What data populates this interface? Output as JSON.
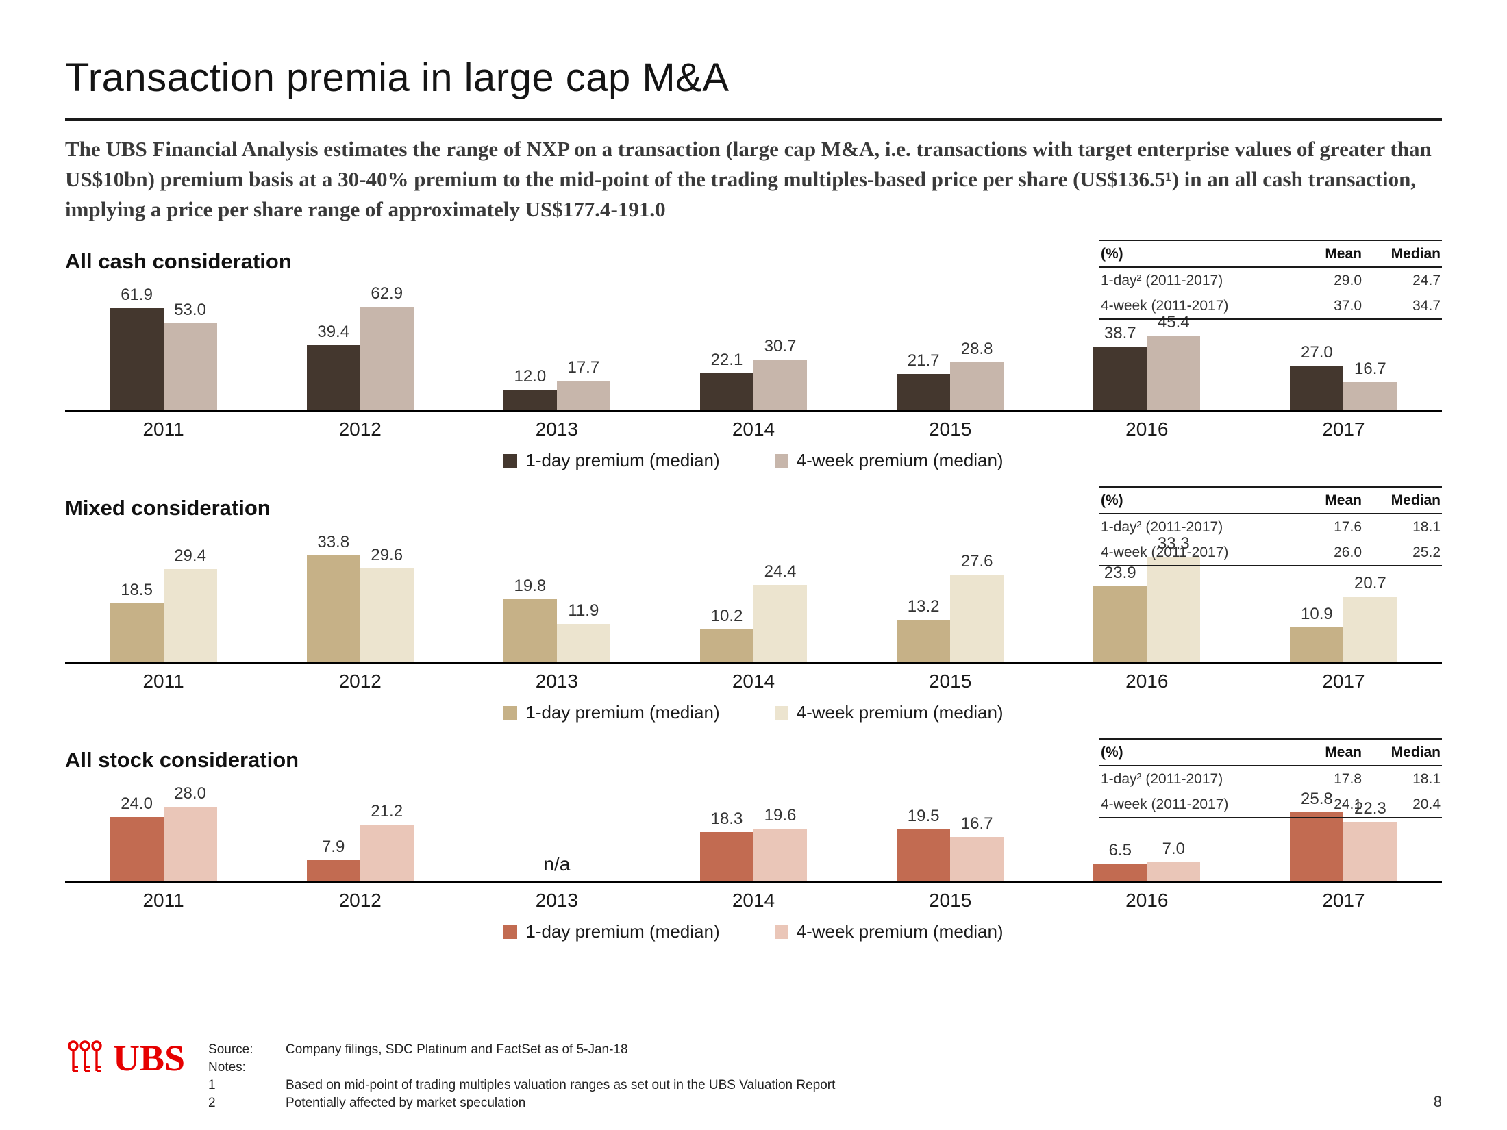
{
  "slide": {
    "title": "Transaction premia in large cap M&A",
    "intro": "The UBS Financial Analysis estimates the range of NXP on a transaction (large cap M&A, i.e. transactions with target enterprise values of greater than US$10bn) premium basis at a 30-40% premium to the mid-point of the trading multiples-based price per share (US$136.5¹) in an all cash transaction, implying a price per share range of approximately US$177.4-191.0",
    "page_number": "8"
  },
  "colors": {
    "ubs_red": "#e60000",
    "axis": "#000000"
  },
  "chart_data": [
    {
      "type": "bar",
      "title": "All cash consideration",
      "categories": [
        "2011",
        "2012",
        "2013",
        "2014",
        "2015",
        "2016",
        "2017"
      ],
      "series": [
        {
          "name": "1-day premium (median)",
          "color": "#44372e",
          "values": [
            61.9,
            39.4,
            12.0,
            22.1,
            21.7,
            38.7,
            27.0
          ]
        },
        {
          "name": "4-week premium (median)",
          "color": "#c7b6ab",
          "values": [
            53.0,
            62.9,
            17.7,
            30.7,
            28.8,
            45.4,
            16.7
          ]
        }
      ],
      "ylim": [
        0,
        63
      ],
      "legend_position": "bottom-center",
      "stats": {
        "header": [
          "(%)",
          "Mean",
          "Median"
        ],
        "rows": [
          {
            "label": "1-day² (2011-2017)",
            "mean": "29.0",
            "median": "24.7"
          },
          {
            "label": "4-week (2011-2017)",
            "mean": "37.0",
            "median": "34.7"
          }
        ]
      }
    },
    {
      "type": "bar",
      "title": "Mixed consideration",
      "categories": [
        "2011",
        "2012",
        "2013",
        "2014",
        "2015",
        "2016",
        "2017"
      ],
      "series": [
        {
          "name": "1-day premium (median)",
          "color": "#c6b187",
          "values": [
            18.5,
            33.8,
            19.8,
            10.2,
            13.2,
            23.9,
            10.9
          ]
        },
        {
          "name": "4-week premium (median)",
          "color": "#ece4cf",
          "values": [
            29.4,
            29.6,
            11.9,
            24.4,
            27.6,
            33.3,
            20.7
          ]
        }
      ],
      "ylim": [
        0,
        34
      ],
      "legend_position": "bottom-center",
      "stats": {
        "header": [
          "(%)",
          "Mean",
          "Median"
        ],
        "rows": [
          {
            "label": "1-day² (2011-2017)",
            "mean": "17.6",
            "median": "18.1"
          },
          {
            "label": "4-week (2011-2017)",
            "mean": "26.0",
            "median": "25.2"
          }
        ]
      }
    },
    {
      "type": "bar",
      "title": "All stock consideration",
      "categories": [
        "2011",
        "2012",
        "2013",
        "2014",
        "2015",
        "2016",
        "2017"
      ],
      "na_text": "n/a",
      "series": [
        {
          "name": "1-day premium (median)",
          "color": "#c26b51",
          "values": [
            24.0,
            7.9,
            null,
            18.3,
            19.5,
            6.5,
            25.8
          ]
        },
        {
          "name": "4-week premium (median)",
          "color": "#eac6b8",
          "values": [
            28.0,
            21.2,
            null,
            19.6,
            16.7,
            7.0,
            22.3
          ]
        }
      ],
      "ylim": [
        0,
        28
      ],
      "legend_position": "bottom-center",
      "stats": {
        "header": [
          "(%)",
          "Mean",
          "Median"
        ],
        "rows": [
          {
            "label": "1-day² (2011-2017)",
            "mean": "17.8",
            "median": "18.1"
          },
          {
            "label": "4-week (2011-2017)",
            "mean": "24.1",
            "median": "20.4"
          }
        ]
      }
    }
  ],
  "footer": {
    "logo_text": "UBS",
    "source_label": "Source:",
    "source_value": "Company filings, SDC Platinum and FactSet as of 5-Jan-18",
    "notes_label": "Notes:",
    "note1_num": "1",
    "note1": "Based on mid-point of trading multiples valuation ranges as set out in the UBS Valuation Report",
    "note2_num": "2",
    "note2": "Potentially affected by market speculation"
  }
}
